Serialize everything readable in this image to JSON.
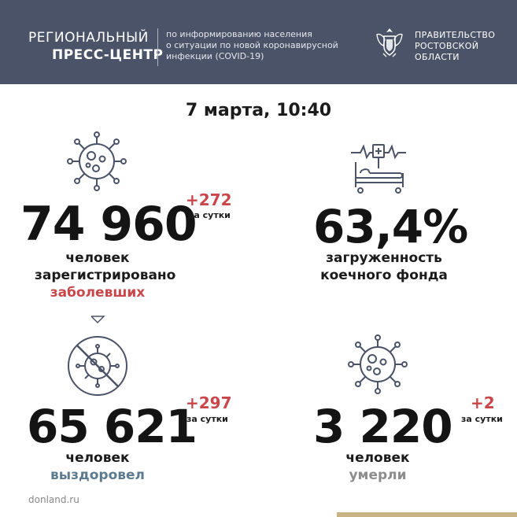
{
  "header": {
    "title_line1": "РЕГИОНАЛЬНЫЙ",
    "title_line2": "ПРЕСС-ЦЕНТР",
    "description_lines": [
      "по информированию населения",
      "о ситуации по новой коронавирусной",
      "инфекции (COVID-19)"
    ],
    "government_lines": [
      "ПРАВИТЕЛЬСТВО",
      "РОСТОВСКОЙ",
      "ОБЛАСТИ"
    ],
    "emblem_icon": "coat-of-arms-icon"
  },
  "date": "7 марта, 10:40",
  "stats": {
    "infected": {
      "value": "74 960",
      "delta": "+272",
      "delta_label": "за сутки",
      "caption_line1": "человек",
      "caption_line2": "зарегистрировано",
      "caption_line3": "заболевших",
      "icon": "virus-icon"
    },
    "beds": {
      "value": "63,4%",
      "caption_line1": "загруженность",
      "caption_line2": "коечного фонда",
      "icon": "hospital-bed-icon"
    },
    "recovered": {
      "value": "65 621",
      "delta": "+297",
      "delta_label": "за сутки",
      "caption_line1": "человек",
      "caption_line2": "выздоровел",
      "icon": "crossed-virus-icon"
    },
    "deaths": {
      "value": "3 220",
      "delta": "+2",
      "delta_label": "за сутки",
      "caption_line1": "человек",
      "caption_line2": "умерли",
      "icon": "virus-icon"
    }
  },
  "footer": {
    "site": "donland.ru"
  },
  "colors": {
    "header_bg": "#4b5369",
    "accent_red": "#c9474b",
    "accent_blue": "#5d7b8e",
    "muted_gray": "#8d8d8d",
    "gold": "#c7b384"
  }
}
